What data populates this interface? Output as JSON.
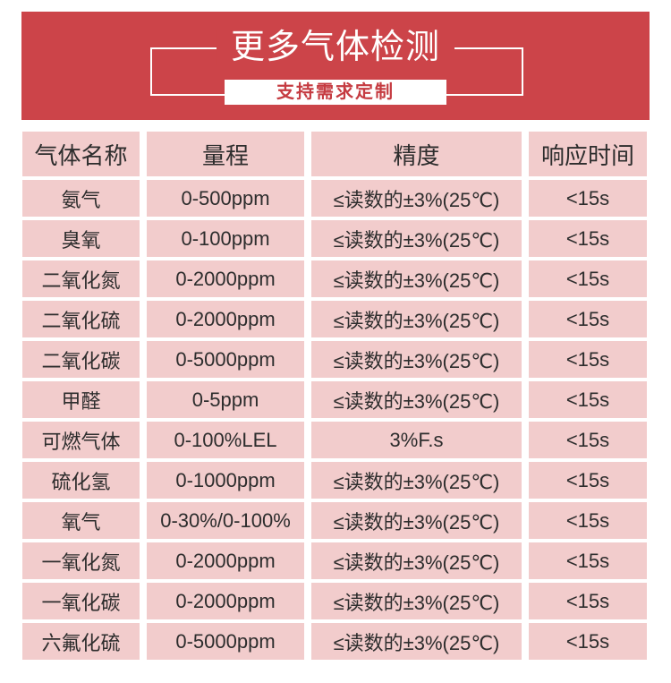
{
  "banner": {
    "title": "更多气体检测",
    "subtitle": "支持需求定制",
    "banner_color": "#cc4449",
    "subtitle_text_color": "#c53b41"
  },
  "table": {
    "cell_color": "#f2cccc",
    "columns": [
      "气体名称",
      "量程",
      "精度",
      "响应时间"
    ],
    "rows": [
      {
        "gas": "氨气",
        "range": "0-500ppm",
        "accuracy": "≤读数的±3%(25℃)",
        "response": "<15s"
      },
      {
        "gas": "臭氧",
        "range": "0-100ppm",
        "accuracy": "≤读数的±3%(25℃)",
        "response": "<15s"
      },
      {
        "gas": "二氧化氮",
        "range": "0-2000ppm",
        "accuracy": "≤读数的±3%(25℃)",
        "response": "<15s"
      },
      {
        "gas": "二氧化硫",
        "range": "0-2000ppm",
        "accuracy": "≤读数的±3%(25℃)",
        "response": "<15s"
      },
      {
        "gas": "二氧化碳",
        "range": "0-5000ppm",
        "accuracy": "≤读数的±3%(25℃)",
        "response": "<15s"
      },
      {
        "gas": "甲醛",
        "range": "0-5ppm",
        "accuracy": "≤读数的±3%(25℃)",
        "response": "<15s"
      },
      {
        "gas": "可燃气体",
        "range": "0-100%LEL",
        "accuracy": "3%F.s",
        "response": "<15s"
      },
      {
        "gas": "硫化氢",
        "range": "0-1000ppm",
        "accuracy": "≤读数的±3%(25℃)",
        "response": "<15s"
      },
      {
        "gas": "氧气",
        "range": "0-30%/0-100%",
        "accuracy": "≤读数的±3%(25℃)",
        "response": "<15s"
      },
      {
        "gas": "一氧化氮",
        "range": "0-2000ppm",
        "accuracy": "≤读数的±3%(25℃)",
        "response": "<15s"
      },
      {
        "gas": "一氧化碳",
        "range": "0-2000ppm",
        "accuracy": "≤读数的±3%(25℃)",
        "response": "<15s"
      },
      {
        "gas": "六氟化硫",
        "range": "0-5000ppm",
        "accuracy": "≤读数的±3%(25℃)",
        "response": "<15s"
      }
    ]
  }
}
